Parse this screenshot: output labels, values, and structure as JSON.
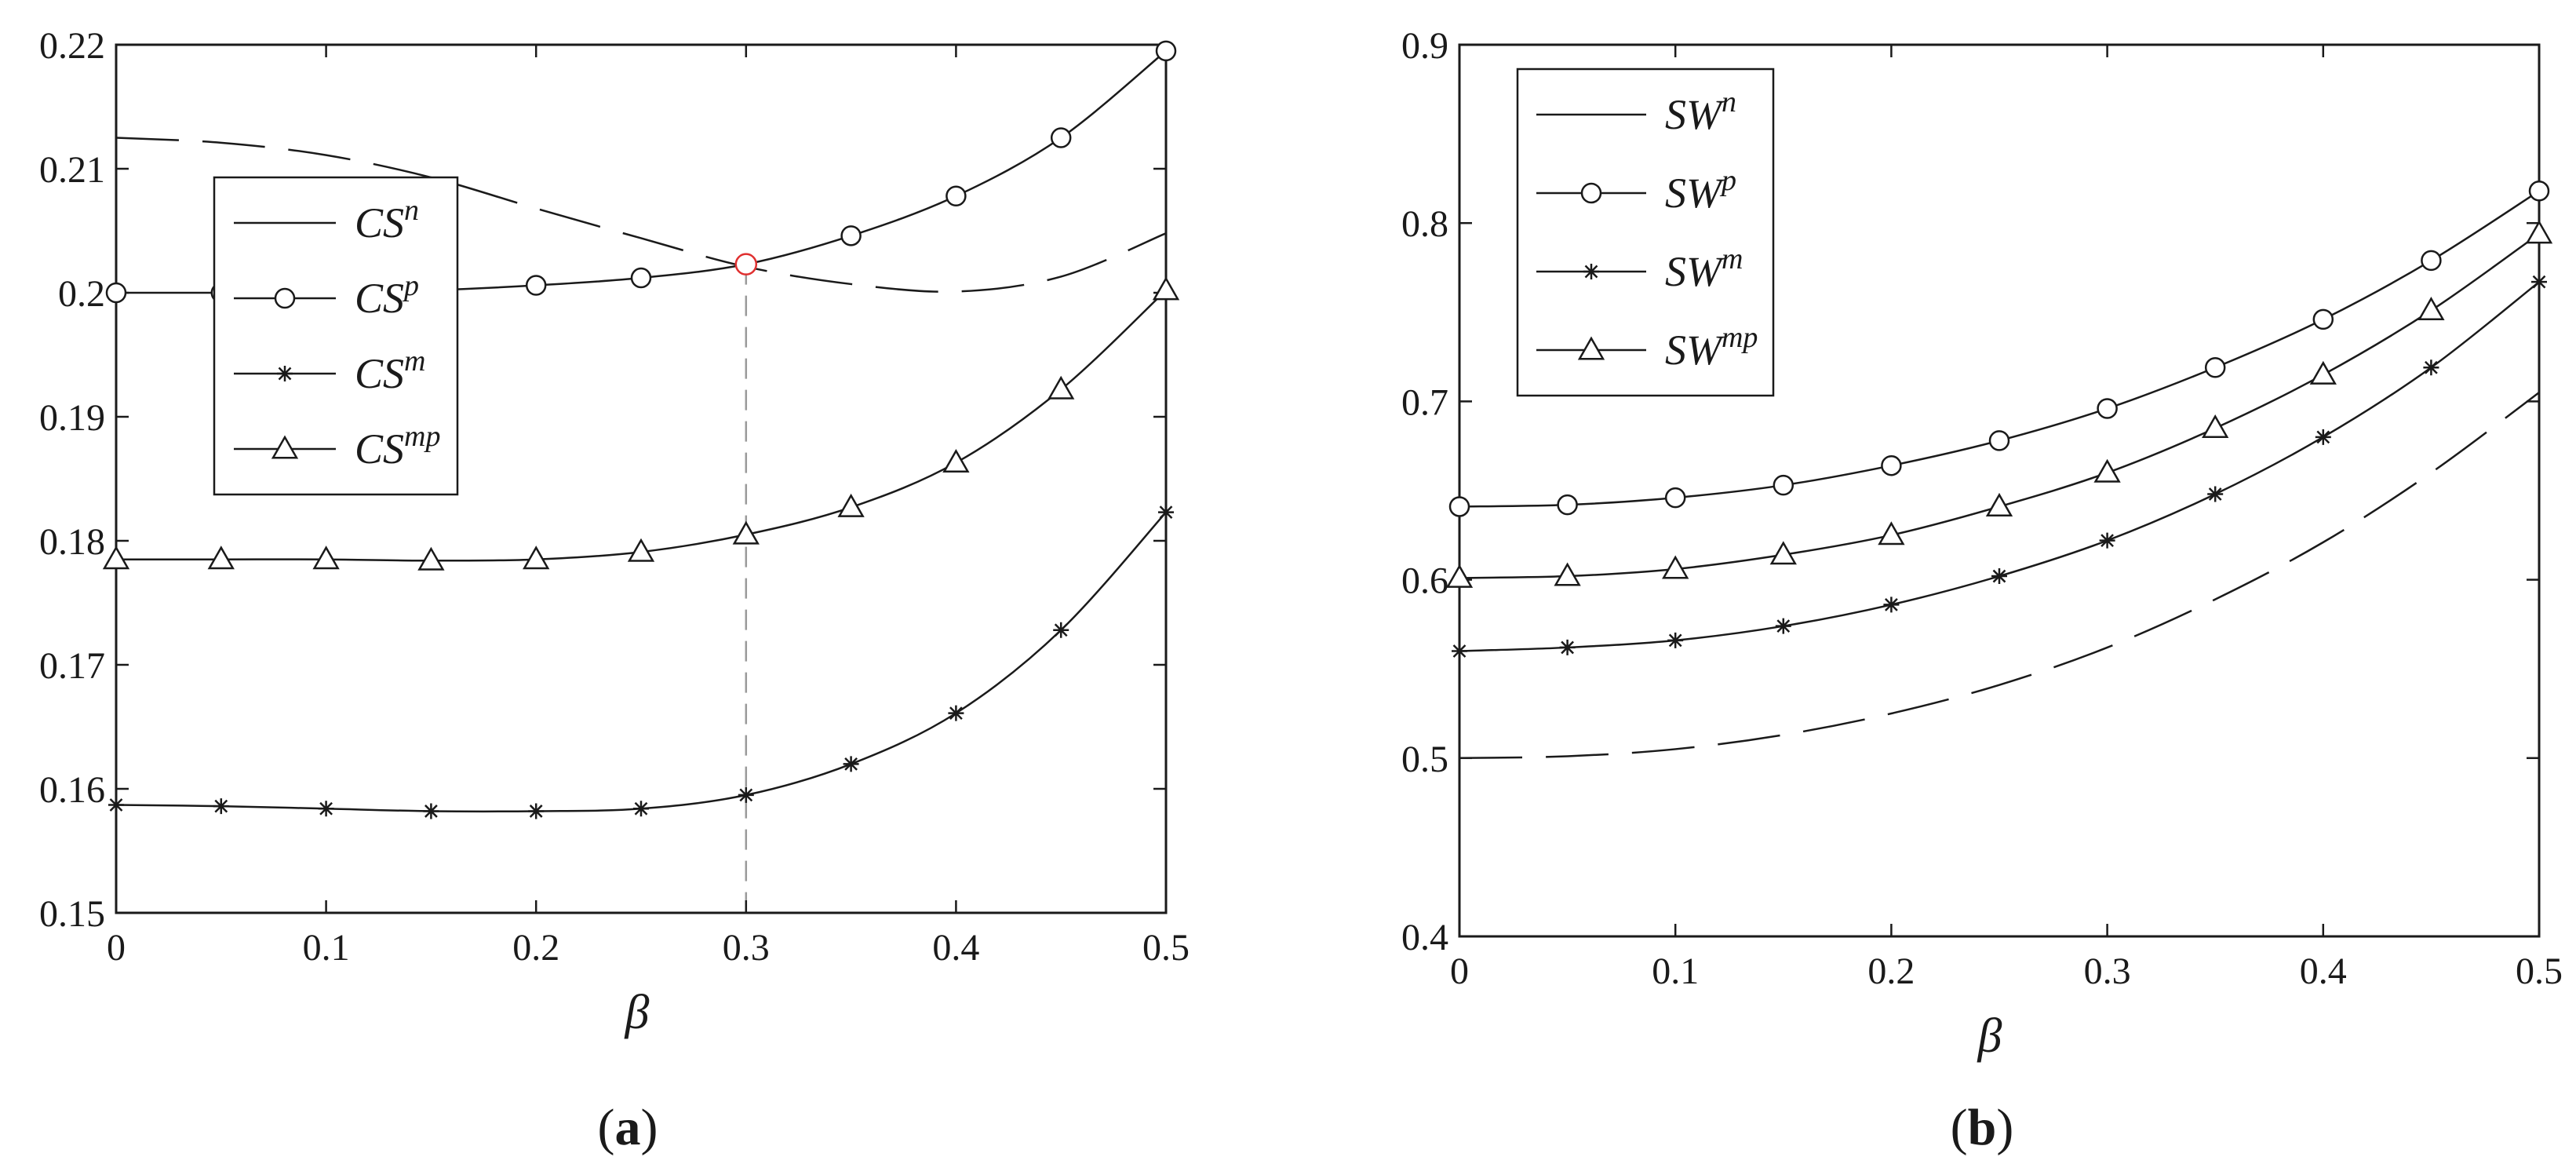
{
  "chart_data": [
    {
      "type": "line",
      "panel_label": "a",
      "xlabel": "β",
      "ylabel": "",
      "xlim": [
        0,
        0.5
      ],
      "ylim": [
        0.15,
        0.22
      ],
      "xticks": [
        "0",
        "0.1",
        "0.2",
        "0.3",
        "0.4",
        "0.5"
      ],
      "yticks": [
        "0.15",
        "0.16",
        "0.17",
        "0.18",
        "0.19",
        "0.2",
        "0.21",
        "0.22"
      ],
      "x": [
        0,
        0.05,
        0.1,
        0.15,
        0.2,
        0.25,
        0.3,
        0.35,
        0.4,
        0.45,
        0.5
      ],
      "legend_position": "top-left",
      "series": [
        {
          "name": "CS",
          "sup": "n",
          "style": "dashed",
          "marker": "none",
          "values": [
            0.2125,
            0.2121,
            0.2111,
            0.2093,
            0.2068,
            0.2044,
            0.2021,
            0.2007,
            0.2001,
            0.2013,
            0.2048
          ]
        },
        {
          "name": "CS",
          "sup": "p",
          "style": "solid",
          "marker": "circle",
          "values": [
            0.2,
            0.2,
            0.2,
            0.2002,
            0.2006,
            0.2012,
            0.2023,
            0.2046,
            0.2078,
            0.2125,
            0.2195
          ]
        },
        {
          "name": "CS",
          "sup": "m",
          "style": "solid",
          "marker": "star",
          "values": [
            0.1587,
            0.1586,
            0.1584,
            0.1582,
            0.1582,
            0.1584,
            0.1595,
            0.162,
            0.1661,
            0.1728,
            0.1823
          ]
        },
        {
          "name": "CS",
          "sup": "mp",
          "style": "solid",
          "marker": "triangle",
          "values": [
            0.1785,
            0.1785,
            0.1785,
            0.1784,
            0.1785,
            0.1791,
            0.1805,
            0.1827,
            0.1863,
            0.1922,
            0.2002
          ]
        }
      ],
      "annotations": {
        "vline_x": 0.3,
        "highlight_point": {
          "x": 0.3,
          "y": 0.2023,
          "color": "#e03030"
        }
      }
    },
    {
      "type": "line",
      "panel_label": "b",
      "xlabel": "β",
      "ylabel": "",
      "xlim": [
        0,
        0.5
      ],
      "ylim": [
        0.4,
        0.9
      ],
      "xticks": [
        "0",
        "0.1",
        "0.2",
        "0.3",
        "0.4",
        "0.5"
      ],
      "yticks": [
        "0.4",
        "0.5",
        "0.6",
        "0.7",
        "0.8",
        "0.9"
      ],
      "x": [
        0,
        0.05,
        0.1,
        0.15,
        0.2,
        0.25,
        0.3,
        0.35,
        0.4,
        0.45,
        0.5
      ],
      "legend_position": "top-left",
      "series": [
        {
          "name": "SW",
          "sup": "n",
          "style": "dashed",
          "marker": "none",
          "values": [
            0.5,
            0.501,
            0.505,
            0.513,
            0.525,
            0.541,
            0.562,
            0.589,
            0.621,
            0.66,
            0.705
          ]
        },
        {
          "name": "SW",
          "sup": "p",
          "style": "solid",
          "marker": "circle",
          "values": [
            0.641,
            0.642,
            0.646,
            0.653,
            0.664,
            0.678,
            0.696,
            0.719,
            0.746,
            0.779,
            0.818
          ]
        },
        {
          "name": "SW",
          "sup": "m",
          "style": "solid",
          "marker": "star",
          "values": [
            0.56,
            0.562,
            0.566,
            0.574,
            0.586,
            0.602,
            0.622,
            0.648,
            0.68,
            0.719,
            0.767
          ]
        },
        {
          "name": "SW",
          "sup": "mp",
          "style": "solid",
          "marker": "triangle",
          "values": [
            0.601,
            0.602,
            0.606,
            0.614,
            0.625,
            0.641,
            0.66,
            0.685,
            0.715,
            0.751,
            0.794
          ]
        }
      ],
      "annotations": {}
    }
  ],
  "colors": {
    "line": "#1a1a1a",
    "legend_line": "#777777",
    "guide": "#9a9a9a",
    "highlight": "#e03030"
  }
}
